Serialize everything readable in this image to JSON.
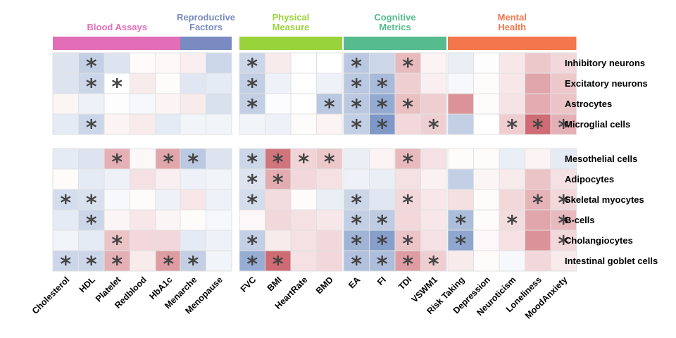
{
  "chart_data": {
    "type": "heatmap",
    "groups": [
      {
        "title": [
          "Blood Assays"
        ],
        "color": "#e36db7",
        "columns": [
          "Cholesterol",
          "HDL",
          "Platelet",
          "Redblood",
          "HbA1c"
        ]
      },
      {
        "title": [
          "Reproductive",
          "Factors"
        ],
        "color": "#7a8bc1",
        "columns": [
          "Menarche",
          "Menopause"
        ]
      },
      {
        "title": [
          "Physical",
          "Measure"
        ],
        "color": "#99d33b",
        "columns": [
          "FVC",
          "BMI",
          "HeartRate",
          "BMD"
        ]
      },
      {
        "title": [
          "Cognitive",
          "Metrics"
        ],
        "color": "#56bb8e",
        "columns": [
          "EA",
          "FI",
          "TDI",
          "VSWM1"
        ]
      },
      {
        "title": [
          "Mental",
          "Health"
        ],
        "color": "#f4764c",
        "columns": [
          "Risk Taking",
          "Depression",
          "Neuroticism",
          "Loneliness",
          "MoodAnxiety"
        ]
      }
    ],
    "row_blocks": [
      {
        "rows": [
          "Inhibitory neurons",
          "Excitatory neurons",
          "Astrocytes",
          "Microglial cells"
        ]
      },
      {
        "rows": [
          "Mesothelial cells",
          "Adipocytes",
          "Skeletal myocytes",
          "B-cells",
          "Cholangiocytes",
          "Intestinal goblet cells"
        ]
      }
    ],
    "color_scale": {
      "negative": "#5377b5",
      "zero": "#ffffff",
      "positive": "#bd3a45",
      "range": [
        -1,
        1
      ]
    },
    "values": [
      [
        [
          -0.2,
          -0.35,
          -0.2,
          0.02,
          0.03,
          0.08,
          -0.3,
          -0.3,
          0.1,
          0.0,
          0.0,
          -0.4,
          -0.3,
          0.35,
          0.06,
          -0.12,
          0.01,
          0.12,
          0.28,
          0.2
        ],
        [
          -0.2,
          -0.3,
          0.0,
          0.1,
          0.02,
          -0.18,
          -0.15,
          -0.35,
          -0.1,
          0.0,
          -0.1,
          -0.4,
          -0.5,
          0.25,
          0.08,
          -0.05,
          0.02,
          0.12,
          0.45,
          0.28
        ],
        [
          0.05,
          -0.1,
          0.01,
          -0.05,
          0.06,
          0.1,
          -0.22,
          -0.35,
          -0.02,
          0.0,
          -0.4,
          -0.4,
          -0.62,
          0.32,
          0.25,
          0.55,
          0.02,
          0.14,
          0.42,
          0.3
        ],
        [
          -0.15,
          -0.3,
          0.06,
          0.1,
          -0.15,
          -0.08,
          -0.08,
          -0.08,
          -0.1,
          0.02,
          0.06,
          -0.35,
          -0.75,
          0.2,
          0.24,
          -0.35,
          0.0,
          0.25,
          0.75,
          0.4
        ]
      ],
      [
        [
          -0.15,
          -0.2,
          0.4,
          0.04,
          0.45,
          -0.4,
          -0.2,
          -0.3,
          0.7,
          0.22,
          0.28,
          -0.12,
          0.06,
          0.35,
          0.15,
          0.02,
          0.02,
          -0.12,
          0.06,
          -0.15
        ],
        [
          0.02,
          -0.15,
          -0.1,
          0.15,
          0.08,
          -0.1,
          -0.08,
          -0.2,
          0.42,
          0.2,
          0.15,
          -0.1,
          -0.12,
          0.15,
          0.07,
          -0.35,
          0.05,
          0.1,
          0.3,
          0.15
        ],
        [
          -0.25,
          -0.22,
          -0.05,
          0.02,
          -0.1,
          0.12,
          -0.1,
          -0.25,
          0.18,
          0.02,
          -0.12,
          -0.3,
          -0.18,
          0.2,
          0.12,
          0.16,
          0.02,
          0.2,
          0.38,
          0.2
        ],
        [
          -0.15,
          -0.3,
          0.05,
          0.12,
          0.05,
          0.02,
          -0.05,
          0.04,
          0.2,
          0.15,
          0.12,
          -0.35,
          -0.38,
          0.2,
          0.12,
          -0.48,
          0.02,
          0.18,
          0.45,
          0.35
        ],
        [
          -0.08,
          -0.15,
          0.3,
          0.2,
          0.2,
          -0.15,
          -0.1,
          -0.35,
          0.1,
          0.15,
          0.2,
          -0.55,
          -0.7,
          0.3,
          0.15,
          -0.65,
          0.04,
          0.15,
          0.55,
          0.2
        ],
        [
          -0.3,
          -0.3,
          0.4,
          0.1,
          0.5,
          -0.35,
          -0.08,
          -0.6,
          0.75,
          0.15,
          0.2,
          -0.45,
          -0.48,
          0.5,
          0.25,
          0.1,
          0.02,
          -0.05,
          0.2,
          0.1
        ]
      ]
    ],
    "significant": [
      [
        [
          0,
          1,
          0,
          0,
          0,
          0,
          0,
          1,
          0,
          0,
          0,
          1,
          0,
          1,
          0,
          0,
          0,
          0,
          0,
          0
        ],
        [
          0,
          1,
          1,
          0,
          0,
          0,
          0,
          1,
          0,
          0,
          0,
          1,
          1,
          0,
          0,
          0,
          0,
          0,
          0,
          0
        ],
        [
          0,
          0,
          0,
          0,
          0,
          0,
          0,
          1,
          0,
          0,
          1,
          1,
          1,
          1,
          0,
          0,
          0,
          0,
          0,
          0
        ],
        [
          0,
          1,
          0,
          0,
          0,
          0,
          0,
          0,
          0,
          0,
          0,
          1,
          1,
          0,
          1,
          0,
          0,
          1,
          1,
          1
        ]
      ],
      [
        [
          0,
          0,
          1,
          0,
          1,
          1,
          0,
          1,
          1,
          1,
          1,
          0,
          0,
          1,
          0,
          0,
          0,
          0,
          0,
          0
        ],
        [
          0,
          0,
          0,
          0,
          0,
          0,
          0,
          1,
          1,
          0,
          0,
          0,
          0,
          0,
          0,
          0,
          0,
          0,
          0,
          0
        ],
        [
          1,
          1,
          0,
          0,
          0,
          0,
          0,
          1,
          0,
          0,
          0,
          1,
          0,
          1,
          0,
          0,
          0,
          0,
          1,
          1
        ],
        [
          0,
          1,
          0,
          0,
          0,
          0,
          0,
          0,
          0,
          0,
          0,
          1,
          1,
          0,
          0,
          1,
          0,
          1,
          0,
          1
        ],
        [
          0,
          0,
          1,
          0,
          0,
          0,
          0,
          1,
          0,
          0,
          0,
          1,
          1,
          1,
          0,
          1,
          0,
          0,
          0,
          1
        ],
        [
          1,
          1,
          1,
          0,
          1,
          1,
          0,
          1,
          1,
          0,
          0,
          1,
          1,
          1,
          1,
          0,
          0,
          0,
          0,
          0
        ]
      ]
    ],
    "significance_marker": "*"
  }
}
